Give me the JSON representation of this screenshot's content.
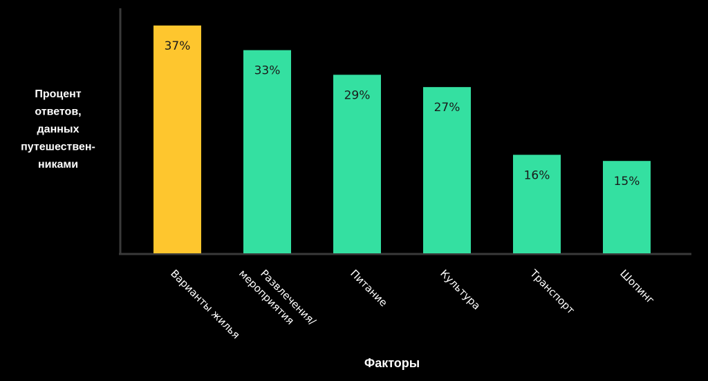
{
  "chart_data": {
    "type": "bar",
    "categories": [
      [
        "Варианты жилья"
      ],
      [
        "Развлечения/",
        "мероприятия"
      ],
      [
        "Питание"
      ],
      [
        "Культура"
      ],
      [
        "Транспорт"
      ],
      [
        "Шопинг"
      ]
    ],
    "values": [
      37,
      33,
      29,
      27,
      16,
      15
    ],
    "value_labels": [
      "37%",
      "33%",
      "29%",
      "27%",
      "16%",
      "15%"
    ],
    "ylabel_lines": [
      "Процент",
      "ответов,",
      "данных",
      "путешествен-",
      "никами"
    ],
    "xlabel": "Факторы",
    "ylim": [
      0,
      40
    ],
    "grid": false,
    "bar_colors": [
      "#fec62e",
      "#34e0a1",
      "#34e0a1",
      "#34e0a1",
      "#34e0a1",
      "#34e0a1"
    ],
    "axis_color": "#3a3a3a",
    "value_label_color": "#1a1a1a"
  }
}
